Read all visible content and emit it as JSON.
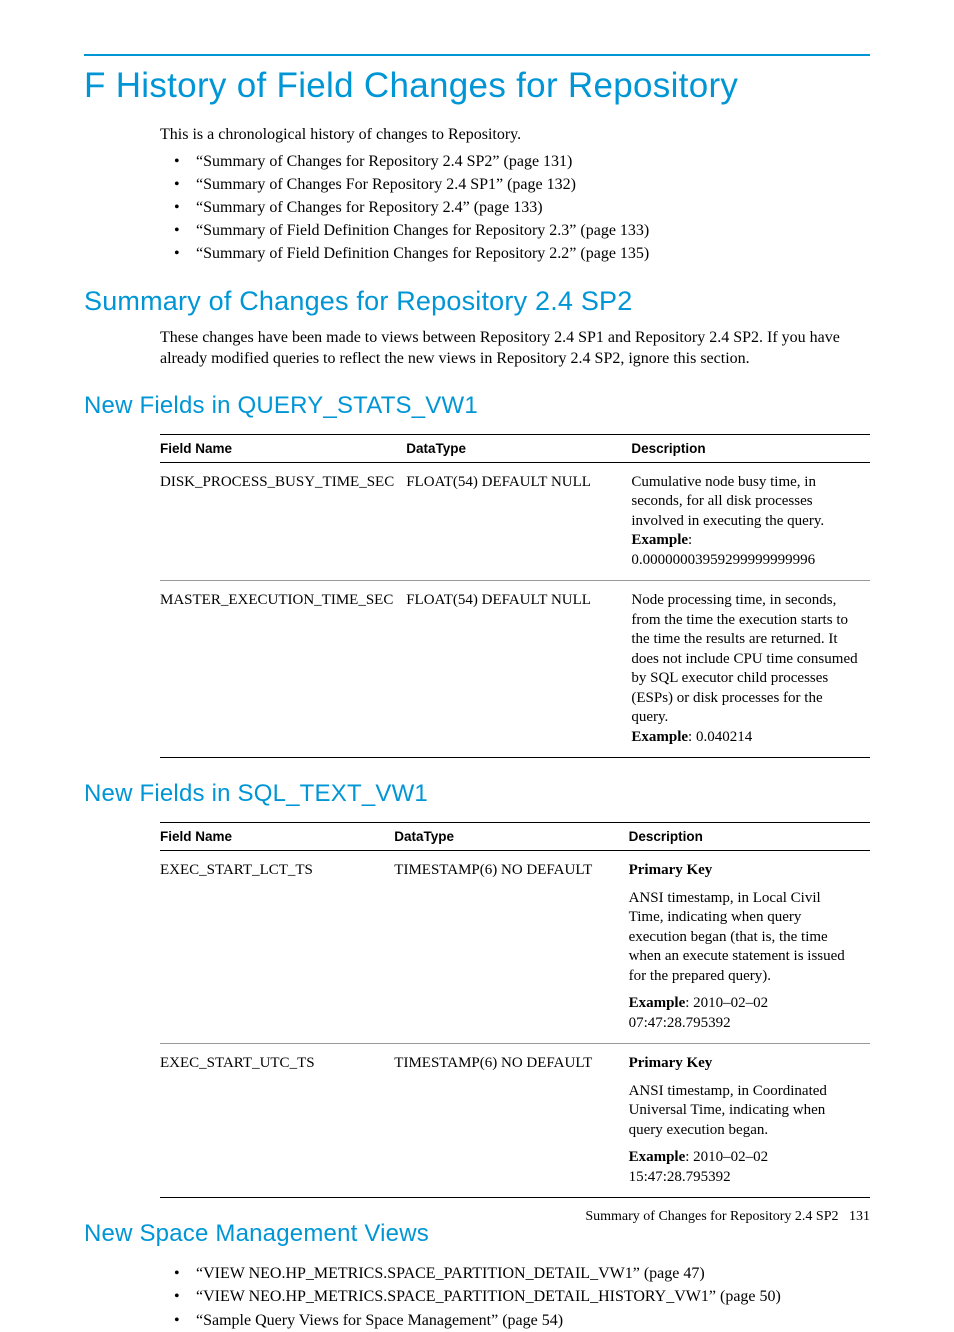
{
  "colors": {
    "accent": "#0096d6",
    "text": "#000000",
    "rule": "#000000",
    "row_rule": "#999999",
    "background": "#ffffff"
  },
  "page": {
    "title": "F History of Field Changes for Repository",
    "intro": "This is a chronological history of changes to Repository.",
    "toc": [
      "“Summary of Changes for Repository 2.4 SP2” (page 131)",
      "“Summary of Changes For Repository 2.4 SP1” (page 132)",
      "“Summary of Changes for Repository 2.4” (page 133)",
      "“Summary of Field Definition Changes for Repository 2.3” (page 133)",
      "“Summary of Field Definition Changes for Repository 2.2” (page 135)"
    ]
  },
  "section1": {
    "heading": "Summary of Changes for Repository 2.4 SP2",
    "para": "These changes have been made to views between Repository 2.4 SP1 and Repository 2.4 SP2. If you have already modified queries to reflect the new views in Repository 2.4 SP2, ignore this section."
  },
  "table_headers": {
    "field": "Field Name",
    "type": "DataType",
    "desc": "Description"
  },
  "query_stats": {
    "heading": "New Fields in QUERY_STATS_VW1",
    "rows": [
      {
        "field": "DISK_PROCESS_BUSY_TIME_SEC",
        "type": "FLOAT(54) DEFAULT NULL",
        "desc_main": "Cumulative node busy time, in seconds, for all disk processes involved in executing the query.",
        "example_label": "Example",
        "example_value": ": 0.00000003959299999999996"
      },
      {
        "field": "MASTER_EXECUTION_TIME_SEC",
        "type": "FLOAT(54) DEFAULT NULL",
        "desc_main": "Node processing time, in seconds, from the time the execution starts to the time the results are returned. It does not include CPU time consumed by SQL executor child processes (ESPs) or disk processes for the query.",
        "example_label": "Example",
        "example_value": ": 0.040214"
      }
    ]
  },
  "sql_text": {
    "heading": "New Fields in SQL_TEXT_VW1",
    "rows": [
      {
        "field": "EXEC_START_LCT_TS",
        "type": "TIMESTAMP(6) NO DEFAULT",
        "pk": "Primary Key",
        "desc_main": "ANSI timestamp, in Local Civil Time, indicating when query execution began (that is, the time when an execute statement is issued for the prepared query).",
        "example_label": "Example",
        "example_value": ": 2010–02–02 07:47:28.795392"
      },
      {
        "field": "EXEC_START_UTC_TS",
        "type": "TIMESTAMP(6) NO DEFAULT",
        "pk": "Primary Key",
        "desc_main": "ANSI timestamp, in Coordinated Universal Time, indicating when query execution began.",
        "example_label": "Example",
        "example_value": ": 2010–02–02 15:47:28.795392"
      }
    ]
  },
  "space_mgmt": {
    "heading": "New Space Management Views",
    "items": [
      "“VIEW NEO.HP_METRICS.SPACE_PARTITION_DETAIL_VW1” (page 47)",
      "“VIEW NEO.HP_METRICS.SPACE_PARTITION_DETAIL_HISTORY_VW1” (page 50)",
      "“Sample Query Views for Space Management” (page 54)"
    ]
  },
  "footer": {
    "text": "Summary of Changes for Repository 2.4 SP2",
    "page_no": "131"
  }
}
